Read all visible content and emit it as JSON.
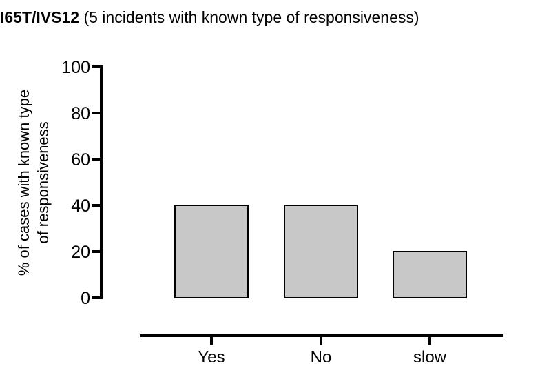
{
  "chart_data": {
    "type": "bar",
    "title_bold": "I65T/IVS12",
    "title_rest": " (5 incidents with known type of responsiveness)",
    "ylabel_line1": "% of cases with known type",
    "ylabel_line2": "of responsiveness",
    "xlabel": "",
    "categories": [
      "Yes",
      "No",
      "slow"
    ],
    "values": [
      40,
      40,
      20
    ],
    "ylim": [
      0,
      100
    ],
    "yticks": [
      0,
      20,
      40,
      60,
      80,
      100
    ],
    "ytick_labels": [
      "0",
      "20",
      "40",
      "60",
      "80",
      "100"
    ],
    "grid": false,
    "legend": "none",
    "colors": {
      "bar_fill": "#c8c8c8",
      "bar_stroke": "#000000",
      "axis": "#000000"
    }
  }
}
